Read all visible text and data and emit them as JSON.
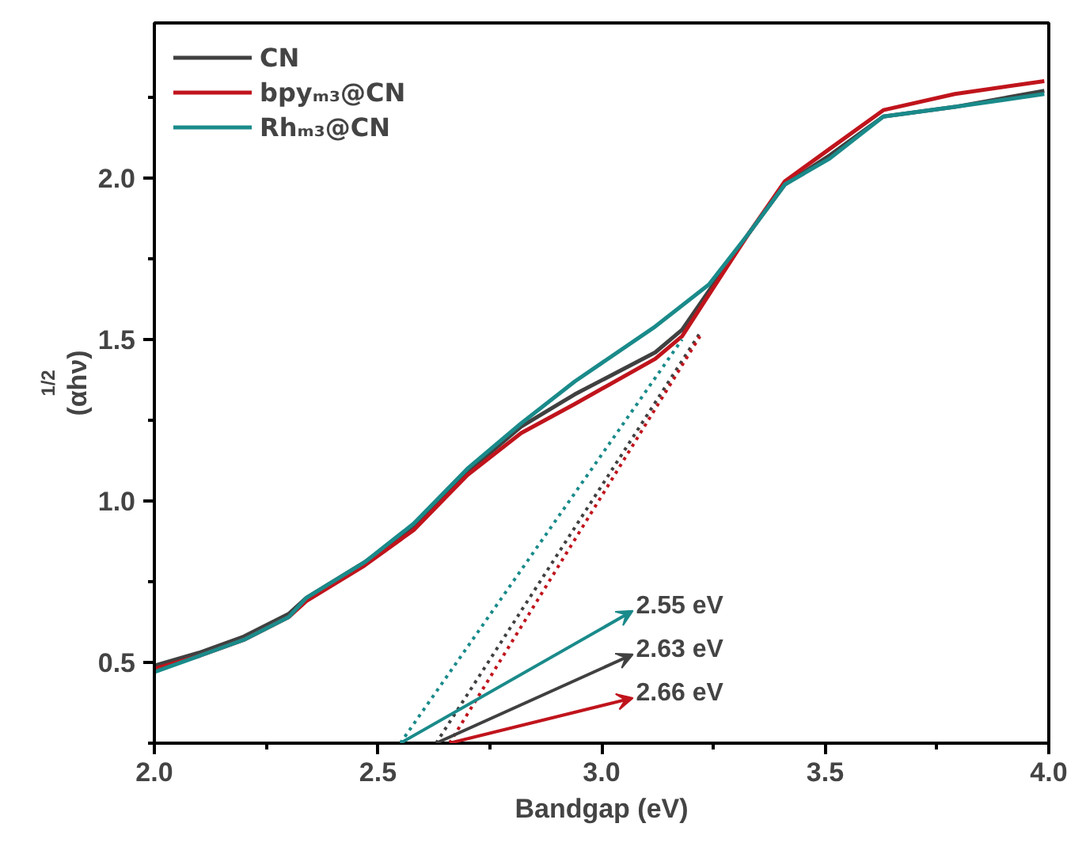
{
  "chart_data": {
    "type": "line",
    "xlabel": "Bandgap (eV)",
    "ylabel": "(αhν)$^{1/2}$",
    "xlim": [
      2.0,
      4.0
    ],
    "ylim": [
      0.25,
      2.48
    ],
    "xticks": [
      {
        "value": 2.0,
        "label": "2.0"
      },
      {
        "value": 2.5,
        "label": "2.5"
      },
      {
        "value": 3.0,
        "label": "3.0"
      },
      {
        "value": 3.5,
        "label": "3.5"
      },
      {
        "value": 4.0,
        "label": "4.0"
      }
    ],
    "yticks": [
      {
        "value": 0.5,
        "label": "0.5"
      },
      {
        "value": 1.0,
        "label": "1.0"
      },
      {
        "value": 1.5,
        "label": "1.5"
      },
      {
        "value": 2.0,
        "label": "2.0"
      }
    ],
    "legend": "top left",
    "grid": false,
    "marker": "none",
    "line_style": "solid",
    "series": [
      {
        "name": "CN",
        "color": "#404040",
        "x": [
          2.0,
          2.1,
          2.2,
          2.3,
          2.34,
          2.47,
          2.58,
          2.7,
          2.82,
          2.94,
          3.12,
          3.18,
          3.25,
          3.33,
          3.41,
          3.51,
          3.63,
          3.79,
          3.99
        ],
        "values": [
          0.49,
          0.53,
          0.58,
          0.65,
          0.7,
          0.81,
          0.92,
          1.09,
          1.23,
          1.33,
          1.46,
          1.53,
          1.67,
          1.83,
          1.98,
          2.07,
          2.19,
          2.22,
          2.27
        ]
      },
      {
        "name": "bpyₘ₃@CN",
        "color": "#c0141c",
        "x": [
          2.0,
          2.1,
          2.2,
          2.3,
          2.34,
          2.47,
          2.58,
          2.7,
          2.82,
          2.94,
          3.12,
          3.18,
          3.25,
          3.33,
          3.41,
          3.51,
          3.63,
          3.79,
          3.99
        ],
        "values": [
          0.48,
          0.52,
          0.57,
          0.64,
          0.69,
          0.8,
          0.91,
          1.08,
          1.21,
          1.3,
          1.44,
          1.51,
          1.66,
          1.83,
          1.99,
          2.09,
          2.21,
          2.26,
          2.3
        ]
      },
      {
        "name": "Rhₘ₃@CN",
        "color": "#1a8a8a",
        "x": [
          2.0,
          2.1,
          2.2,
          2.3,
          2.34,
          2.47,
          2.58,
          2.7,
          2.82,
          2.94,
          3.12,
          3.24,
          3.33,
          3.41,
          3.51,
          3.63,
          3.79,
          3.99
        ],
        "values": [
          0.47,
          0.52,
          0.57,
          0.64,
          0.7,
          0.81,
          0.93,
          1.1,
          1.24,
          1.37,
          1.54,
          1.67,
          1.83,
          1.98,
          2.06,
          2.19,
          2.22,
          2.26
        ]
      },
      {
        "color": "#1a8a8a",
        "line_style": "dotted",
        "x": [
          2.55,
          3.18
        ],
        "values": [
          0.25,
          1.5
        ]
      },
      {
        "color": "#404040",
        "line_style": "dotted",
        "x": [
          2.63,
          3.22
        ],
        "values": [
          0.25,
          1.52
        ]
      },
      {
        "color": "#c0141c",
        "line_style": "dotted",
        "x": [
          2.66,
          3.22
        ],
        "values": [
          0.25,
          1.51
        ]
      }
    ],
    "annotations": [
      {
        "text": "2.55 eV",
        "x": 2.55,
        "y": 0.25
      },
      {
        "text": "2.63 eV",
        "x": 2.63,
        "y": 0.25
      },
      {
        "text": "2.66 eV",
        "x": 2.66,
        "y": 0.25
      }
    ]
  }
}
